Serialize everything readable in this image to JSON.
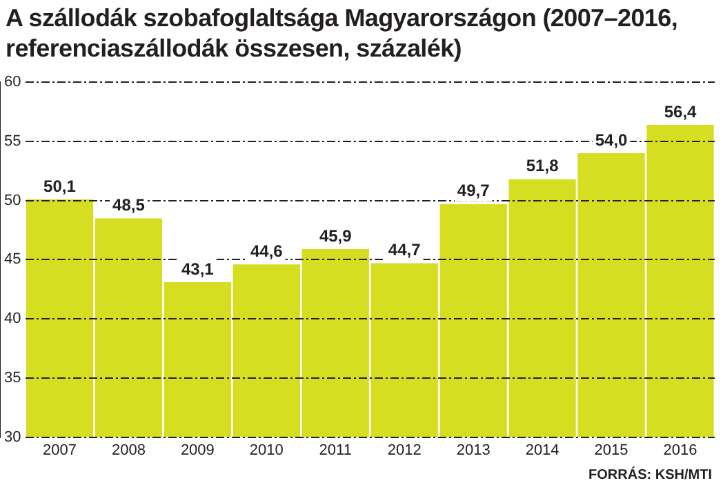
{
  "chart_data": {
    "type": "bar",
    "title": "A szállodák szobafoglaltsága Magyarországon (2007–2016, referenciaszállodák összesen, százalék)",
    "categories": [
      "2007",
      "2008",
      "2009",
      "2010",
      "2011",
      "2012",
      "2013",
      "2014",
      "2015",
      "2016"
    ],
    "values": [
      50.1,
      48.5,
      43.1,
      44.6,
      45.9,
      44.7,
      49.7,
      51.8,
      54.0,
      56.4
    ],
    "value_labels": [
      "50,1",
      "48,5",
      "43,1",
      "44,6",
      "45,9",
      "44,7",
      "49,7",
      "51,8",
      "54,0",
      "56,4"
    ],
    "color": "#d6de22",
    "ylim": [
      30,
      60
    ],
    "yticks": [
      30,
      35,
      40,
      45,
      50,
      55,
      60
    ],
    "grid": "y",
    "annotations": [
      "FORRÁS: KSH/MTI"
    ]
  }
}
